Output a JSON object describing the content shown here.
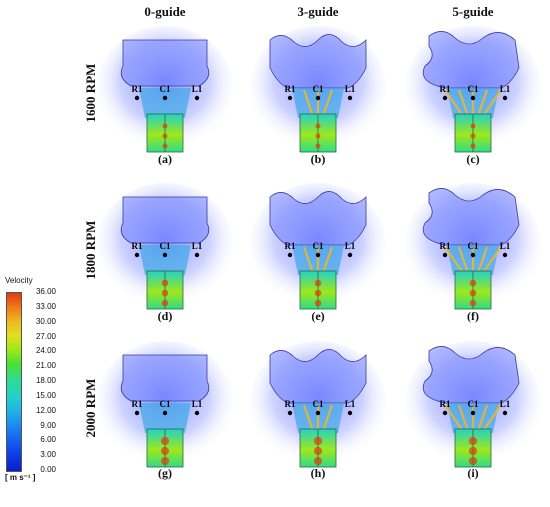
{
  "columns": [
    "0-guide",
    "3-guide",
    "5-guide"
  ],
  "rows": [
    "1600 RPM",
    "1800 RPM",
    "2000 RPM"
  ],
  "panel_labels": [
    "(a)",
    "(b)",
    "(c)",
    "(d)",
    "(e)",
    "(f)",
    "(g)",
    "(h)",
    "(i)"
  ],
  "probe_labels": {
    "left": "R1",
    "center": "C1",
    "right": "L1"
  },
  "legend": {
    "title": "Velocity",
    "ticks": [
      "36.00",
      "33.00",
      "30.00",
      "27.00",
      "24.00",
      "21.00",
      "18.00",
      "15.00",
      "12.00",
      "9.00",
      "6.00",
      "3.00",
      "0.00"
    ],
    "unit": "[ m s⁻¹ ]"
  },
  "colors": {
    "low": "#0a1ccf",
    "mid": "#22d2c8",
    "high": "#e03a10",
    "halo": "#7d8cff"
  }
}
